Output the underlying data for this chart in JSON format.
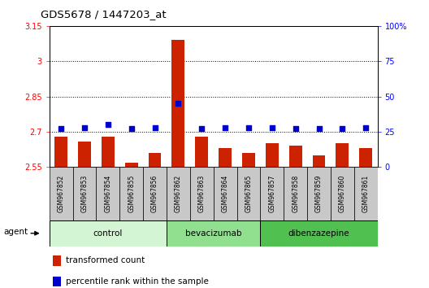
{
  "title": "GDS5678 / 1447203_at",
  "samples": [
    "GSM967852",
    "GSM967853",
    "GSM967854",
    "GSM967855",
    "GSM967856",
    "GSM967862",
    "GSM967863",
    "GSM967864",
    "GSM967865",
    "GSM967857",
    "GSM967858",
    "GSM967859",
    "GSM967860",
    "GSM967861"
  ],
  "transformed_counts": [
    2.68,
    2.66,
    2.68,
    2.57,
    2.61,
    3.09,
    2.68,
    2.63,
    2.61,
    2.65,
    2.64,
    2.6,
    2.65,
    2.63
  ],
  "percentile_ranks": [
    27,
    28,
    30,
    27,
    28,
    45,
    27,
    28,
    28,
    28,
    27,
    27,
    27,
    28
  ],
  "groups": [
    {
      "label": "control",
      "start": 0,
      "end": 5,
      "color": "#d4f5d4"
    },
    {
      "label": "bevacizumab",
      "start": 5,
      "end": 9,
      "color": "#90e090"
    },
    {
      "label": "dibenzazepine",
      "start": 9,
      "end": 14,
      "color": "#50c050"
    }
  ],
  "ylim_left": [
    2.55,
    3.15
  ],
  "ylim_right": [
    0,
    100
  ],
  "yticks_left": [
    2.55,
    2.7,
    2.85,
    3.0,
    3.15
  ],
  "yticks_right": [
    0,
    25,
    50,
    75,
    100
  ],
  "ytick_labels_left": [
    "2.55",
    "2.7",
    "2.85",
    "3",
    "3.15"
  ],
  "ytick_labels_right": [
    "0",
    "25",
    "50",
    "75",
    "100%"
  ],
  "hlines": [
    2.7,
    2.85,
    3.0
  ],
  "bar_color": "#cc2200",
  "dot_color": "#0000cc",
  "bar_bottom": 2.55,
  "bar_width": 0.55,
  "legend_items": [
    {
      "color": "#cc2200",
      "label": "transformed count"
    },
    {
      "color": "#0000cc",
      "label": "percentile rank within the sample"
    }
  ],
  "agent_label": "agent",
  "sample_bg": "#d0d0d0",
  "plot_bg": "#ffffff",
  "fig_bg": "#ffffff"
}
